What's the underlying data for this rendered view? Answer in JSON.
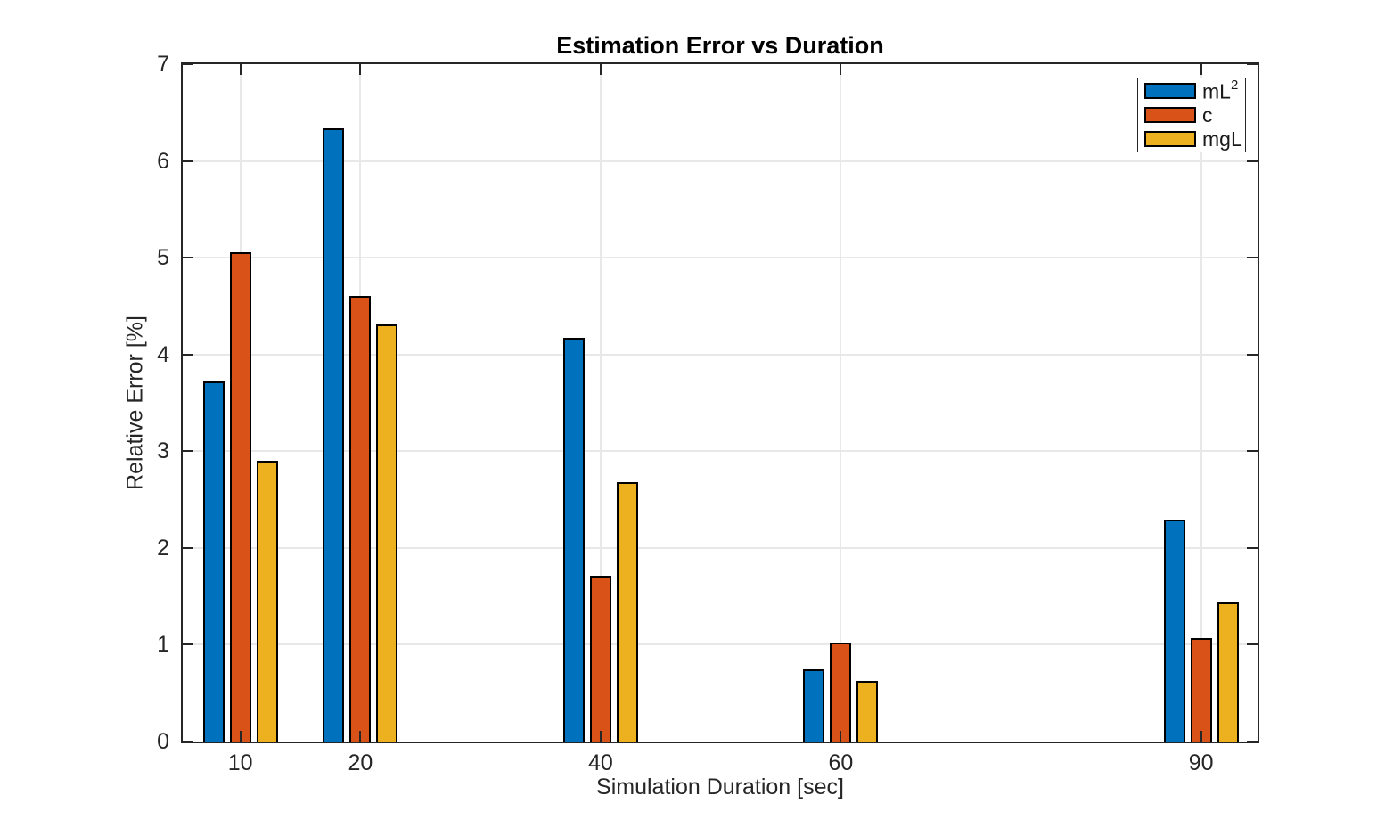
{
  "title": "Estimation Error vs Duration",
  "axes": {
    "xlabel": "Simulation Duration [sec]",
    "ylabel": "Relative Error [%]"
  },
  "chart_data": {
    "type": "bar",
    "title": "Estimation Error vs Duration",
    "xlabel": "Simulation Duration [sec]",
    "ylabel": "Relative Error [%]",
    "x": [
      10,
      20,
      40,
      60,
      90
    ],
    "x_tick_labels": [
      "10",
      "20",
      "40",
      "60",
      "90"
    ],
    "y_tick_labels": [
      "0",
      "1",
      "2",
      "3",
      "4",
      "5",
      "6",
      "7"
    ],
    "series": [
      {
        "name": "mL^2",
        "label_base": "mL",
        "label_sup": "2",
        "color": "#0072BD",
        "values": [
          3.72,
          6.34,
          4.17,
          0.75,
          2.29
        ]
      },
      {
        "name": "c",
        "label_base": "c",
        "label_sup": "",
        "color": "#D95319",
        "values": [
          5.06,
          4.61,
          1.71,
          1.02,
          1.07
        ]
      },
      {
        "name": "mgL",
        "label_base": "mgL",
        "label_sup": "",
        "color": "#EDB120",
        "values": [
          2.9,
          4.31,
          2.68,
          0.63,
          1.44
        ]
      }
    ],
    "xlim": [
      5.2,
      94.7
    ],
    "ylim": [
      0,
      7
    ],
    "y_tick_step": 1,
    "grid": true,
    "legend_position": "northeast",
    "colors": {
      "axis": "#262626",
      "grid": "#E8E8E8",
      "bar_edge": "#000000",
      "background": "#FFFFFF"
    }
  }
}
